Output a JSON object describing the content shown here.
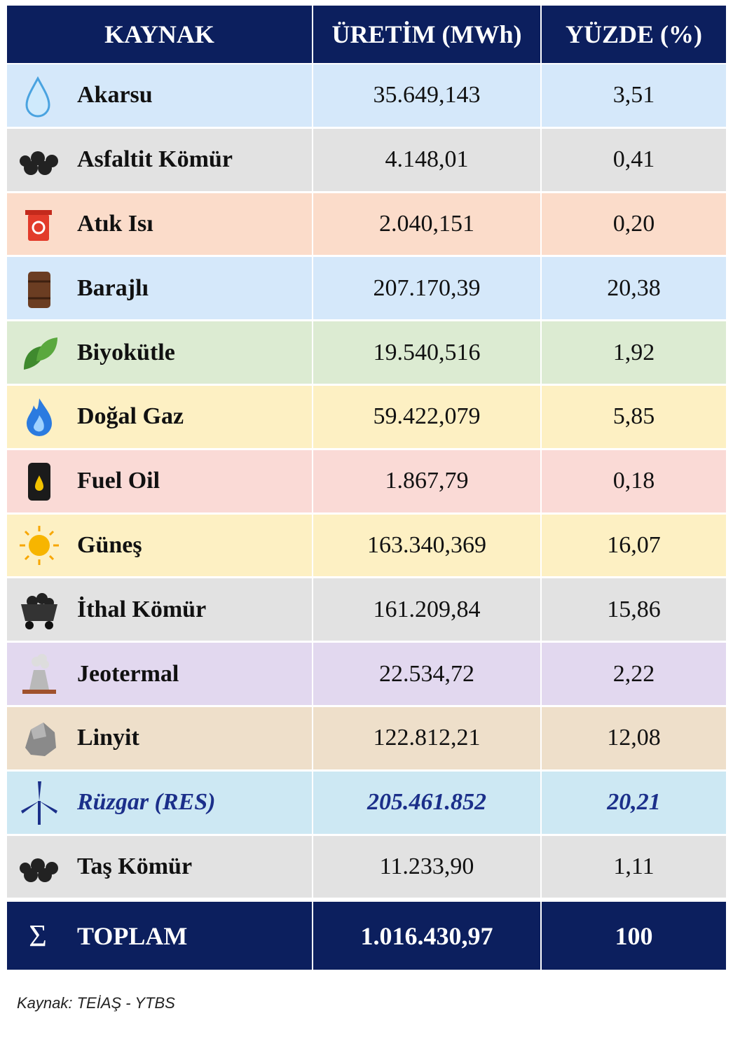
{
  "header": {
    "columns": [
      "KAYNAK",
      "ÜRETİM (MWh)",
      "YÜZDE (%)"
    ]
  },
  "table": {
    "rows": [
      [
        "Akarsu",
        "35.649,143",
        "3,51"
      ],
      [
        "Asfaltit Kömür",
        "4.148,01",
        "0,41"
      ],
      [
        "Atık Isı",
        "2.040,151",
        "0,20"
      ],
      [
        "Barajlı",
        "207.170,39",
        "20,38"
      ],
      [
        "Biyokütle",
        "19.540,516",
        "1,92"
      ],
      [
        "Doğal Gaz",
        "59.422,079",
        "5,85"
      ],
      [
        "Fuel Oil",
        "1.867,79",
        "0,18"
      ],
      [
        "Güneş",
        "163.340,369",
        "16,07"
      ],
      [
        "İthal Kömür",
        "161.209,84",
        "15,86"
      ],
      [
        "Jeotermal",
        "22.534,72",
        "2,22"
      ],
      [
        "Linyit",
        "122.812,21",
        "12,08"
      ],
      [
        "Rüzgar (RES)",
        "205.461.852",
        "20,21"
      ],
      [
        "Taş Kömür",
        "11.233,90",
        "1,11"
      ]
    ]
  },
  "total": {
    "symbol": "Σ",
    "cells": [
      "TOPLAM",
      "1.016.430,97",
      "100"
    ]
  },
  "footer": {
    "source": "Kaynak: TEİAŞ - YTBS"
  }
}
